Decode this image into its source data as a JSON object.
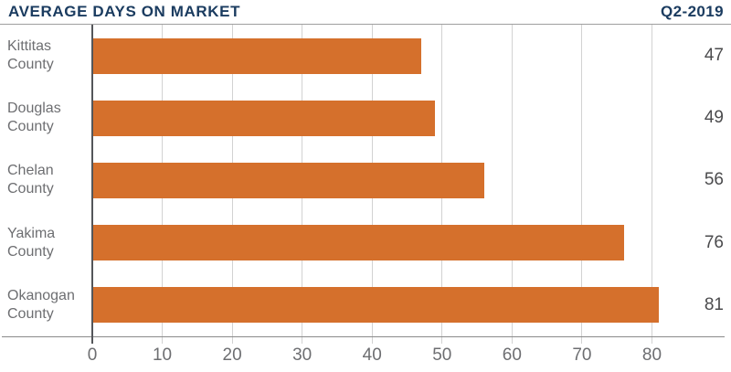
{
  "header": {
    "title": "AVERAGE DAYS ON MARKET",
    "quarter": "Q2-2019"
  },
  "chart_data": {
    "type": "bar",
    "orientation": "horizontal",
    "title": "AVERAGE DAYS ON MARKET",
    "subtitle": "Q2-2019",
    "categories": [
      "Kittitas County",
      "Douglas County",
      "Chelan County",
      "Yakima County",
      "Okanogan County"
    ],
    "values": [
      47,
      49,
      56,
      76,
      81
    ],
    "value_labels": [
      "47",
      "49",
      "56",
      "76",
      "81"
    ],
    "xlabel": "",
    "ylabel": "",
    "xlim": [
      0,
      90
    ],
    "xticks": [
      0,
      10,
      20,
      30,
      40,
      50,
      60,
      70,
      80
    ],
    "grid": true,
    "legend_position": "none",
    "bar_color": "#d5702c"
  },
  "colors": {
    "accent_orange": "#d5702c",
    "navy": "#1b3c60",
    "category_label_gray": "#6d6e71",
    "value_gray": "#4b4b4d",
    "gridline_gray": "#d2d2d2",
    "axis_gray": "#8a8a8a",
    "y_axis_dark": "#54565a"
  }
}
